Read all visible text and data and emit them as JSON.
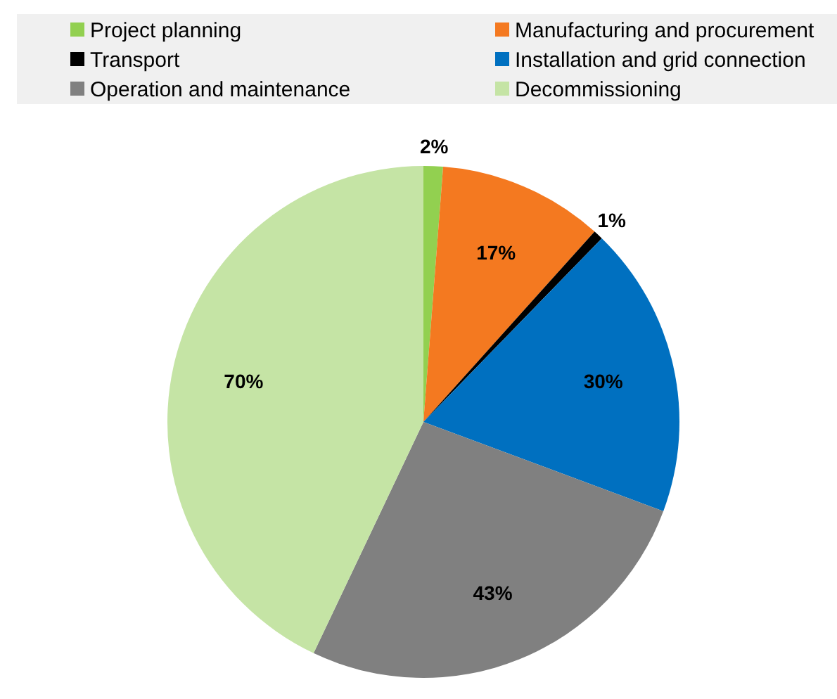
{
  "chart_data": {
    "type": "pie",
    "categories": [
      "Project planning",
      "Manufacturing and procurement",
      "Transport",
      "Installation and grid connection",
      "Operation and maintenance",
      "Decommissioning"
    ],
    "values": [
      2,
      17,
      1,
      30,
      43,
      70
    ],
    "colors": [
      "#92d050",
      "#f47920",
      "#000000",
      "#0070c0",
      "#808080",
      "#c5e4a5"
    ],
    "value_labels": [
      "2%",
      "17%",
      "1%",
      "30%",
      "43%",
      "70%"
    ],
    "legend": "top"
  }
}
